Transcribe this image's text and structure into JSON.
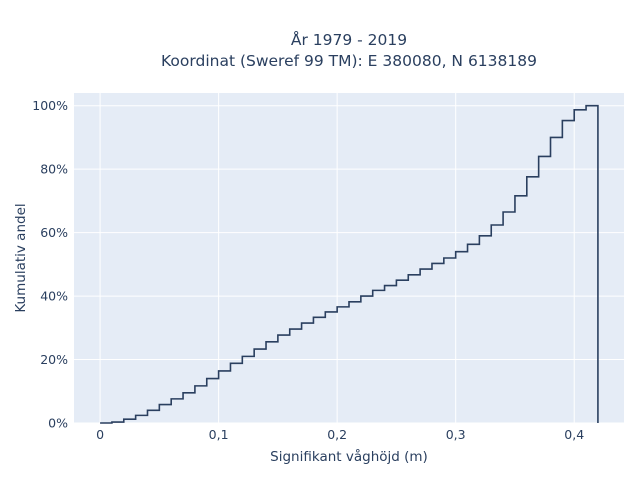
{
  "chart_data": {
    "type": "line",
    "line_shape": "step",
    "title_lines": [
      "År 1979 - 2019",
      "Koordinat (Sweref 99 TM): E 380080, N 6138189"
    ],
    "xlabel": "Signifikant våghöjd (m)",
    "ylabel": "Kumulativ andel",
    "xlim": [
      -0.022,
      0.442
    ],
    "ylim": [
      0,
      1.04
    ],
    "x_ticks": [
      0,
      0.1,
      0.2,
      0.3,
      0.4
    ],
    "x_tick_labels": [
      "0",
      "0,1",
      "0,2",
      "0,3",
      "0,4"
    ],
    "y_ticks": [
      0,
      0.2,
      0.4,
      0.6,
      0.8,
      1.0
    ],
    "y_tick_labels": [
      "0%",
      "20%",
      "40%",
      "60%",
      "80%",
      "100%"
    ],
    "grid": true,
    "colors": {
      "plot_bg": "#e5ecf6",
      "grid": "#ffffff",
      "line": "#2a3f5f"
    },
    "x": [
      0,
      0.01,
      0.02,
      0.03,
      0.04,
      0.05,
      0.06,
      0.07,
      0.08,
      0.09,
      0.1,
      0.11,
      0.12,
      0.13,
      0.14,
      0.15,
      0.16,
      0.17,
      0.18,
      0.19,
      0.2,
      0.21,
      0.22,
      0.23,
      0.24,
      0.25,
      0.26,
      0.27,
      0.28,
      0.29,
      0.3,
      0.31,
      0.32,
      0.33,
      0.34,
      0.35,
      0.36,
      0.37,
      0.38,
      0.39,
      0.4,
      0.41
    ],
    "y": [
      0,
      0.003,
      0.012,
      0.024,
      0.04,
      0.058,
      0.076,
      0.095,
      0.117,
      0.14,
      0.164,
      0.188,
      0.21,
      0.233,
      0.256,
      0.277,
      0.296,
      0.315,
      0.333,
      0.35,
      0.366,
      0.382,
      0.4,
      0.418,
      0.433,
      0.45,
      0.467,
      0.485,
      0.503,
      0.52,
      0.54,
      0.563,
      0.59,
      0.624,
      0.665,
      0.716,
      0.776,
      0.84,
      0.9,
      0.953,
      0.987,
      1.0
    ],
    "x_end": 0.42
  }
}
